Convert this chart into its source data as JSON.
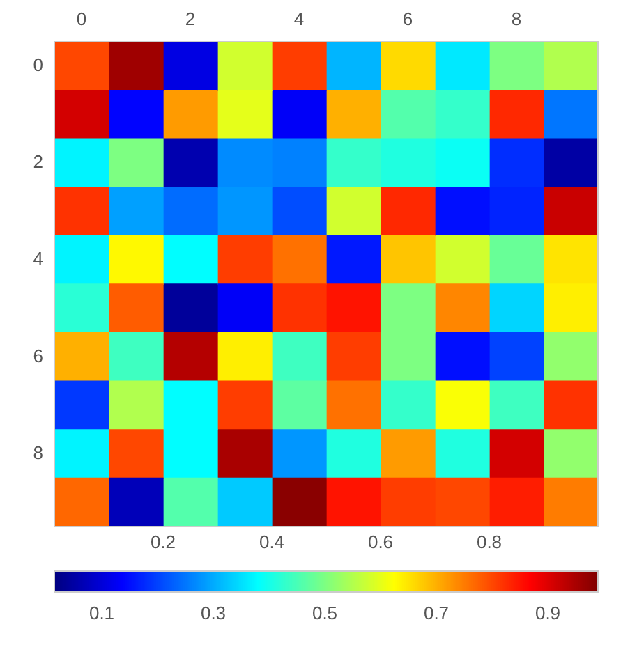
{
  "chart_data": {
    "type": "heatmap",
    "categories": [
      "0",
      null,
      "2",
      null,
      "4",
      null,
      "6",
      null,
      "8",
      null
    ],
    "y_categories": [
      "0",
      null,
      "2",
      null,
      "4",
      null,
      "6",
      null,
      "8",
      null
    ],
    "cells": [
      [
        0.8,
        0.96,
        0.11,
        0.58,
        0.81,
        0.31,
        0.66,
        0.36,
        0.5,
        0.55
      ],
      [
        0.91,
        0.14,
        0.72,
        0.6,
        0.13,
        0.7,
        0.46,
        0.43,
        0.83,
        0.25
      ],
      [
        0.37,
        0.5,
        0.06,
        0.27,
        0.26,
        0.43,
        0.41,
        0.39,
        0.18,
        0.05
      ],
      [
        0.82,
        0.29,
        0.24,
        0.28,
        0.21,
        0.58,
        0.83,
        0.15,
        0.17,
        0.92
      ],
      [
        0.37,
        0.63,
        0.38,
        0.81,
        0.76,
        0.16,
        0.68,
        0.58,
        0.48,
        0.65
      ],
      [
        0.42,
        0.78,
        0.04,
        0.13,
        0.82,
        0.85,
        0.5,
        0.74,
        0.34,
        0.64
      ],
      [
        0.7,
        0.44,
        0.94,
        0.64,
        0.44,
        0.81,
        0.5,
        0.15,
        0.2,
        0.52
      ],
      [
        0.19,
        0.55,
        0.38,
        0.81,
        0.47,
        0.76,
        0.43,
        0.62,
        0.44,
        0.82
      ],
      [
        0.37,
        0.8,
        0.38,
        0.95,
        0.28,
        0.41,
        0.72,
        0.41,
        0.91,
        0.52
      ],
      [
        0.77,
        0.07,
        0.46,
        0.33,
        0.98,
        0.85,
        0.81,
        0.8,
        0.84,
        0.75
      ]
    ],
    "x2lim": [
      0,
      1
    ],
    "x2ticks": [
      0.2,
      0.4,
      0.6,
      0.8
    ],
    "clim": [
      0.015,
      0.99
    ],
    "cticks": [
      0.1,
      0.3,
      0.5,
      0.7,
      0.9
    ],
    "legend": false
  }
}
